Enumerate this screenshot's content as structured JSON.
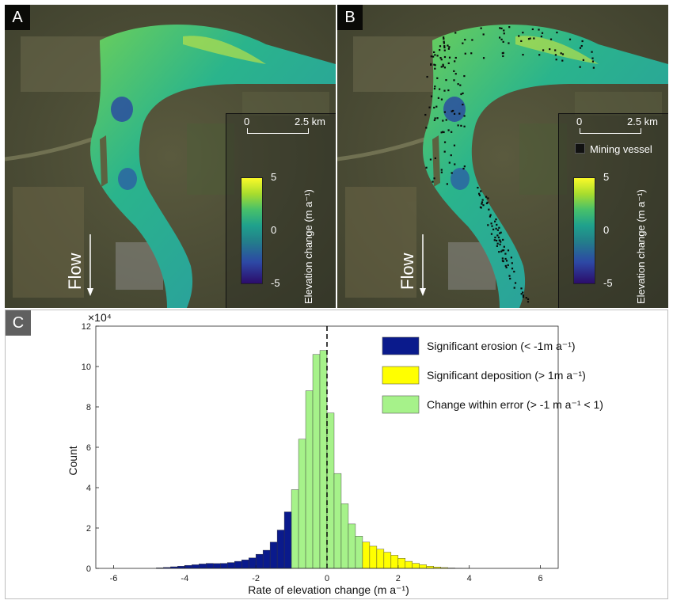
{
  "panels": {
    "a": {
      "label": "A"
    },
    "b": {
      "label": "B"
    },
    "c": {
      "label": "C"
    }
  },
  "map": {
    "scale_start": "0",
    "scale_end": "2.5 km",
    "colorbar_max": "5",
    "colorbar_mid": "0",
    "colorbar_min": "-5",
    "colorbar_label": "Elevation change (m a⁻¹)",
    "flow_label": "Flow",
    "vessel_legend": "Mining vessel"
  },
  "colors": {
    "erosion": "#0a1a8c",
    "deposition": "#ffff00",
    "within_error": "#a6f28a",
    "zero_line": "#000000"
  },
  "chart_data": {
    "type": "bar",
    "xlabel": "Rate of elevation change (m a⁻¹)",
    "ylabel": "Count",
    "y_multiplier": "×10⁴",
    "xlim": [
      -6.5,
      6.5
    ],
    "ylim": [
      0,
      120000
    ],
    "xticks": [
      -6,
      -4,
      -2,
      0,
      2,
      4,
      6
    ],
    "yticks": [
      0,
      2,
      4,
      6,
      8,
      10,
      12
    ],
    "bin_width": 0.2,
    "bin_starts": [
      -4.8,
      -4.6,
      -4.4,
      -4.2,
      -4.0,
      -3.8,
      -3.6,
      -3.4,
      -3.2,
      -3.0,
      -2.8,
      -2.6,
      -2.4,
      -2.2,
      -2.0,
      -1.8,
      -1.6,
      -1.4,
      -1.2,
      -1.0,
      -0.8,
      -0.6,
      -0.4,
      -0.2,
      0.0,
      0.2,
      0.4,
      0.6,
      0.8,
      1.0,
      1.2,
      1.4,
      1.6,
      1.8,
      2.0,
      2.2,
      2.4,
      2.6,
      2.8,
      3.0,
      3.2,
      3.4,
      3.6,
      3.8
    ],
    "counts": [
      300,
      500,
      800,
      1100,
      1500,
      1800,
      2200,
      2500,
      2400,
      2500,
      2900,
      3500,
      4200,
      5200,
      7000,
      9000,
      13000,
      19000,
      28000,
      39000,
      64000,
      88000,
      106000,
      108000,
      77000,
      47000,
      32000,
      22000,
      16000,
      13000,
      11000,
      9500,
      8000,
      6500,
      5000,
      3500,
      2500,
      1800,
      1100,
      700,
      400,
      200,
      100,
      50
    ],
    "legend": [
      {
        "label": "Significant erosion (< -1m a⁻¹)",
        "color": "#0a1a8c"
      },
      {
        "label": "Significant deposition (> 1m a⁻¹)",
        "color": "#ffff00"
      },
      {
        "label": "Change within error (> -1 m a⁻¹ < 1)",
        "color": "#a6f28a"
      }
    ],
    "legend_position": "top-right",
    "zero_line": "dashed vertical at x = 0",
    "grid": false
  }
}
